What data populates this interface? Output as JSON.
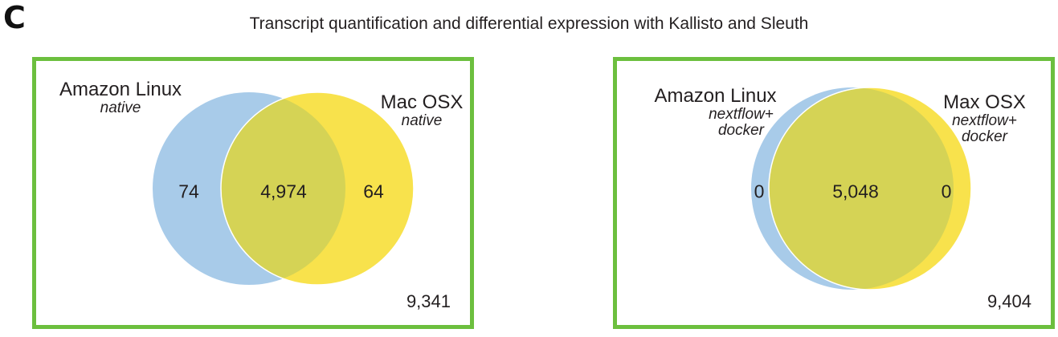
{
  "panel_letter": "C",
  "title": "Transcript quantification and differential expression with Kallisto and Sleuth",
  "colors": {
    "border": "#6cbf3e",
    "set_a": "#a8cbe9",
    "set_b": "#f8e24c",
    "overlap": "#d5d355"
  },
  "venns": [
    {
      "left_set": {
        "name": "Amazon Linux",
        "sub": "native"
      },
      "right_set": {
        "name": "Mac OSX",
        "sub": "native"
      },
      "left_only": "74",
      "overlap": "4,974",
      "right_only": "64",
      "total": "9,341"
    },
    {
      "left_set": {
        "name": "Amazon Linux",
        "sub": "nextflow+\ndocker"
      },
      "right_set": {
        "name": "Max OSX",
        "sub": "nextflow+\ndocker"
      },
      "left_only": "0",
      "overlap": "5,048",
      "right_only": "0",
      "total": "9,404"
    }
  ]
}
